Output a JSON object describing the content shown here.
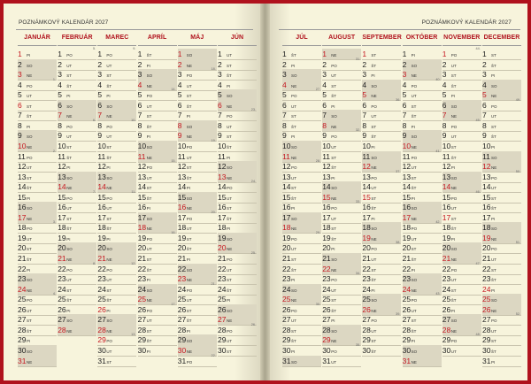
{
  "left_title": "POZNÁMKOVÝ KALENDÁR 2027",
  "right_title": "POZNÁMKOVÝ KALENDÁR 2027",
  "colors": {
    "cover": "#b0121d",
    "page": "#f7f4dc",
    "shade": "#dcd7c2",
    "holiday": "#c5161f"
  },
  "left_months": [
    {
      "name": "JANUÁR",
      "first_dow": 4,
      "days": 31
    },
    {
      "name": "FEBRUÁR",
      "first_dow": 0,
      "days": 28
    },
    {
      "name": "MAREC",
      "first_dow": 0,
      "days": 31
    },
    {
      "name": "APRÍL",
      "first_dow": 3,
      "days": 30
    },
    {
      "name": "MÁJ",
      "first_dow": 5,
      "days": 31
    },
    {
      "name": "JÚN",
      "first_dow": 1,
      "days": 30
    }
  ],
  "right_months": [
    {
      "name": "JÚL",
      "first_dow": 3,
      "days": 31
    },
    {
      "name": "AUGUST",
      "first_dow": 6,
      "days": 31
    },
    {
      "name": "SEPTEMBER",
      "first_dow": 2,
      "days": 30
    },
    {
      "name": "OKTÓBER",
      "first_dow": 4,
      "days": 31
    },
    {
      "name": "NOVEMBER",
      "first_dow": 0,
      "days": 30
    },
    {
      "name": "DECEMBER",
      "first_dow": 2,
      "days": 31
    }
  ],
  "weekday_abbr": [
    "PO",
    "UT",
    "ST",
    "ŠT",
    "PI",
    "SO",
    "NE"
  ],
  "week_number_markers": {
    "JANUÁR": [
      [
        4,
        "1."
      ],
      [
        11,
        "2."
      ],
      [
        18,
        "3."
      ],
      [
        25,
        "4."
      ]
    ],
    "FEBRUÁR": [
      [
        1,
        "5."
      ],
      [
        8,
        "6."
      ],
      [
        15,
        "7."
      ],
      [
        22,
        "8."
      ]
    ],
    "MAREC": [
      [
        1,
        "9."
      ],
      [
        8,
        "10."
      ],
      [
        15,
        "11."
      ],
      [
        22,
        "12."
      ],
      [
        29,
        "13."
      ]
    ],
    "APRÍL": [
      [
        5,
        "14."
      ],
      [
        12,
        "15."
      ],
      [
        19,
        "16."
      ],
      [
        26,
        "17."
      ]
    ],
    "MÁJ": [
      [
        3,
        "18."
      ],
      [
        10,
        "19."
      ],
      [
        17,
        "20."
      ],
      [
        24,
        "21."
      ],
      [
        31,
        "22."
      ]
    ],
    "JÚN": [
      [
        7,
        "23."
      ],
      [
        14,
        "24."
      ],
      [
        21,
        "25."
      ],
      [
        28,
        "26."
      ]
    ],
    "JÚL": [
      [
        5,
        "27."
      ],
      [
        12,
        "28."
      ],
      [
        19,
        "29."
      ],
      [
        26,
        "30."
      ]
    ],
    "AUGUST": [
      [
        2,
        "31."
      ],
      [
        9,
        "32."
      ],
      [
        16,
        "33."
      ],
      [
        23,
        "34."
      ],
      [
        30,
        "35."
      ]
    ],
    "SEPTEMBER": [
      [
        6,
        "36."
      ],
      [
        13,
        "37."
      ],
      [
        20,
        "38."
      ],
      [
        27,
        "39."
      ]
    ],
    "OKTÓBER": [
      [
        4,
        "40."
      ],
      [
        11,
        "41."
      ],
      [
        18,
        "42."
      ],
      [
        25,
        "43."
      ]
    ],
    "NOVEMBER": [
      [
        1,
        "44."
      ],
      [
        8,
        "45."
      ],
      [
        15,
        "46."
      ],
      [
        22,
        "47."
      ],
      [
        29,
        "48."
      ]
    ],
    "DECEMBER": [
      [
        6,
        "49."
      ],
      [
        13,
        "50."
      ],
      [
        20,
        "51."
      ],
      [
        27,
        "52."
      ]
    ]
  },
  "holidays": {
    "JANUÁR": [
      1,
      6
    ],
    "MAREC": [
      26,
      29
    ],
    "MÁJ": [
      1,
      8
    ],
    "AUGUST": [
      29
    ],
    "SEPTEMBER": [
      1,
      15
    ],
    "NOVEMBER": [
      1,
      17
    ],
    "DECEMBER": [
      24,
      25,
      26
    ]
  }
}
